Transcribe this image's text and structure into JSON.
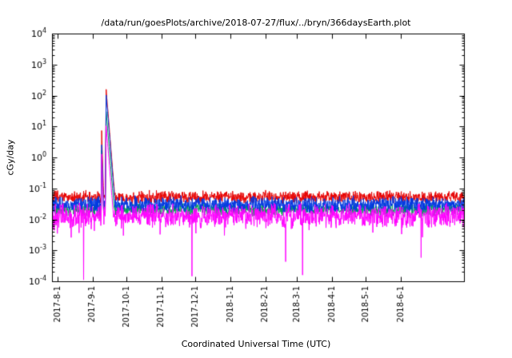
{
  "chart_data": {
    "type": "line",
    "title": "/data/run/goesPlots/archive/2018-07-27/flux/../bryn/366daysEarth.plot",
    "xlabel": "Coordinated Universal Time (UTC)",
    "ylabel": "cGy/day",
    "x_scale": "time",
    "y_scale": "log10",
    "grid": false,
    "legend": "none",
    "x_range": [
      "2017-07-27",
      "2018-07-27"
    ],
    "y_range": [
      0.0001,
      10000
    ],
    "y_tick_exponents": [
      4,
      3,
      2,
      1,
      0,
      -1,
      -2,
      -3,
      -4
    ],
    "x_ticks": [
      {
        "label": "2017-8-1",
        "date": "2017-08-01"
      },
      {
        "label": "2017-9-1",
        "date": "2017-09-01"
      },
      {
        "label": "2017-10-1",
        "date": "2017-10-01"
      },
      {
        "label": "2017-11-1",
        "date": "2017-11-01"
      },
      {
        "label": "2017-12-1",
        "date": "2017-12-01"
      },
      {
        "label": "2018-1-1",
        "date": "2018-01-01"
      },
      {
        "label": "2018-2-1",
        "date": "2018-02-01"
      },
      {
        "label": "2018-3-1",
        "date": "2018-03-01"
      },
      {
        "label": "2018-4-1",
        "date": "2018-04-01"
      },
      {
        "label": "2018-5-1",
        "date": "2018-05-01"
      },
      {
        "label": "2018-6-1",
        "date": "2018-06-01"
      }
    ],
    "series": [
      {
        "name": "red",
        "color": "#e60000",
        "band_min": 0.03,
        "band_max": 0.09
      },
      {
        "name": "green",
        "color": "#00a050",
        "band_min": 0.012,
        "band_max": 0.035
      },
      {
        "name": "blue",
        "color": "#0038e0",
        "band_min": 0.015,
        "band_max": 0.06
      },
      {
        "name": "magenta",
        "color": "#ff00ff",
        "band_min": 0.005,
        "band_max": 0.035
      }
    ],
    "events": {
      "spikes": [
        {
          "peak_date": "2017-09-13",
          "rise_days": 0.8,
          "decay_decades_per_day": 0.45,
          "peaks_cGy_per_day": {
            "red": 150,
            "blue": 105,
            "green": 32,
            "magenta": 10
          }
        },
        {
          "peak_date": "2017-09-09",
          "rise_days": 0.3,
          "decay_decades_per_day": 1.2,
          "peaks_cGy_per_day": {
            "red": 7.5,
            "blue": 2.6,
            "green": 1.8,
            "magenta": 1.3
          }
        }
      ],
      "magenta_dips": [
        {
          "date": "2017-08-13",
          "min_cGy_per_day": 0.0025
        },
        {
          "date": "2017-08-24",
          "min_cGy_per_day": 0.00011
        },
        {
          "date": "2017-11-28",
          "min_cGy_per_day": 0.00013
        },
        {
          "date": "2018-02-19",
          "min_cGy_per_day": 0.0004
        },
        {
          "date": "2018-03-06",
          "min_cGy_per_day": 0.00015
        },
        {
          "date": "2018-06-19",
          "min_cGy_per_day": 0.0005
        }
      ]
    }
  }
}
